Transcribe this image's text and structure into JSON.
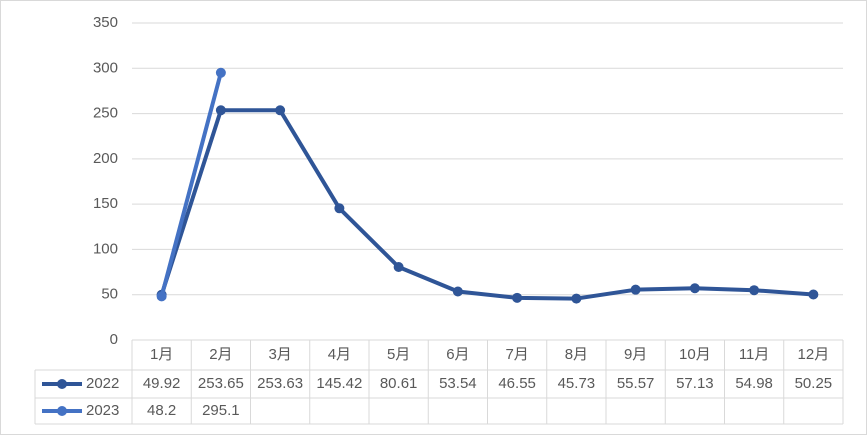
{
  "chart_data": {
    "type": "line",
    "categories": [
      "1月",
      "2月",
      "3月",
      "4月",
      "5月",
      "6月",
      "7月",
      "8月",
      "9月",
      "10月",
      "11月",
      "12月"
    ],
    "series": [
      {
        "name": "2022",
        "color": "#2f5597",
        "values": [
          49.92,
          253.65,
          253.63,
          145.42,
          80.61,
          53.54,
          46.55,
          45.73,
          55.57,
          57.13,
          54.98,
          50.25
        ]
      },
      {
        "name": "2023",
        "color": "#4472c4",
        "values": [
          48.2,
          295.1,
          null,
          null,
          null,
          null,
          null,
          null,
          null,
          null,
          null,
          null
        ]
      }
    ],
    "ylim": [
      0,
      350
    ],
    "yticks": [
      0,
      50,
      100,
      150,
      200,
      250,
      300,
      350
    ],
    "grid": true,
    "data_table": true
  }
}
